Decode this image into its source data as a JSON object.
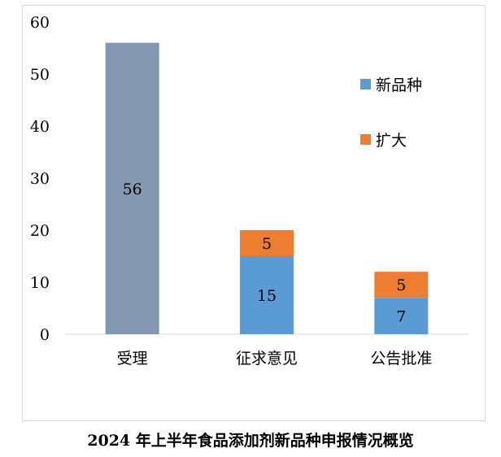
{
  "chart_data": {
    "type": "bar",
    "stacked": true,
    "title": "2024 年上半年食品添加剂新品种申报情况概览",
    "categories": [
      "受理",
      "征求意见",
      "公告批准"
    ],
    "ylim": [
      0,
      60
    ],
    "yticks": [
      0,
      10,
      20,
      30,
      40,
      50,
      60
    ],
    "grid": false,
    "legend_position": "right",
    "series": [
      {
        "name": "新品种",
        "values": [
          null,
          15,
          7
        ],
        "color": "#5b9bd5",
        "labels": [
          "",
          "15",
          "7"
        ]
      },
      {
        "name": "扩大",
        "values": [
          null,
          5,
          5
        ],
        "color": "#ed7d31",
        "labels": [
          "",
          "5",
          "5"
        ]
      }
    ],
    "total_bars": [
      {
        "category": "受理",
        "value": 56,
        "label": "56",
        "color": "#8497b0"
      }
    ]
  }
}
